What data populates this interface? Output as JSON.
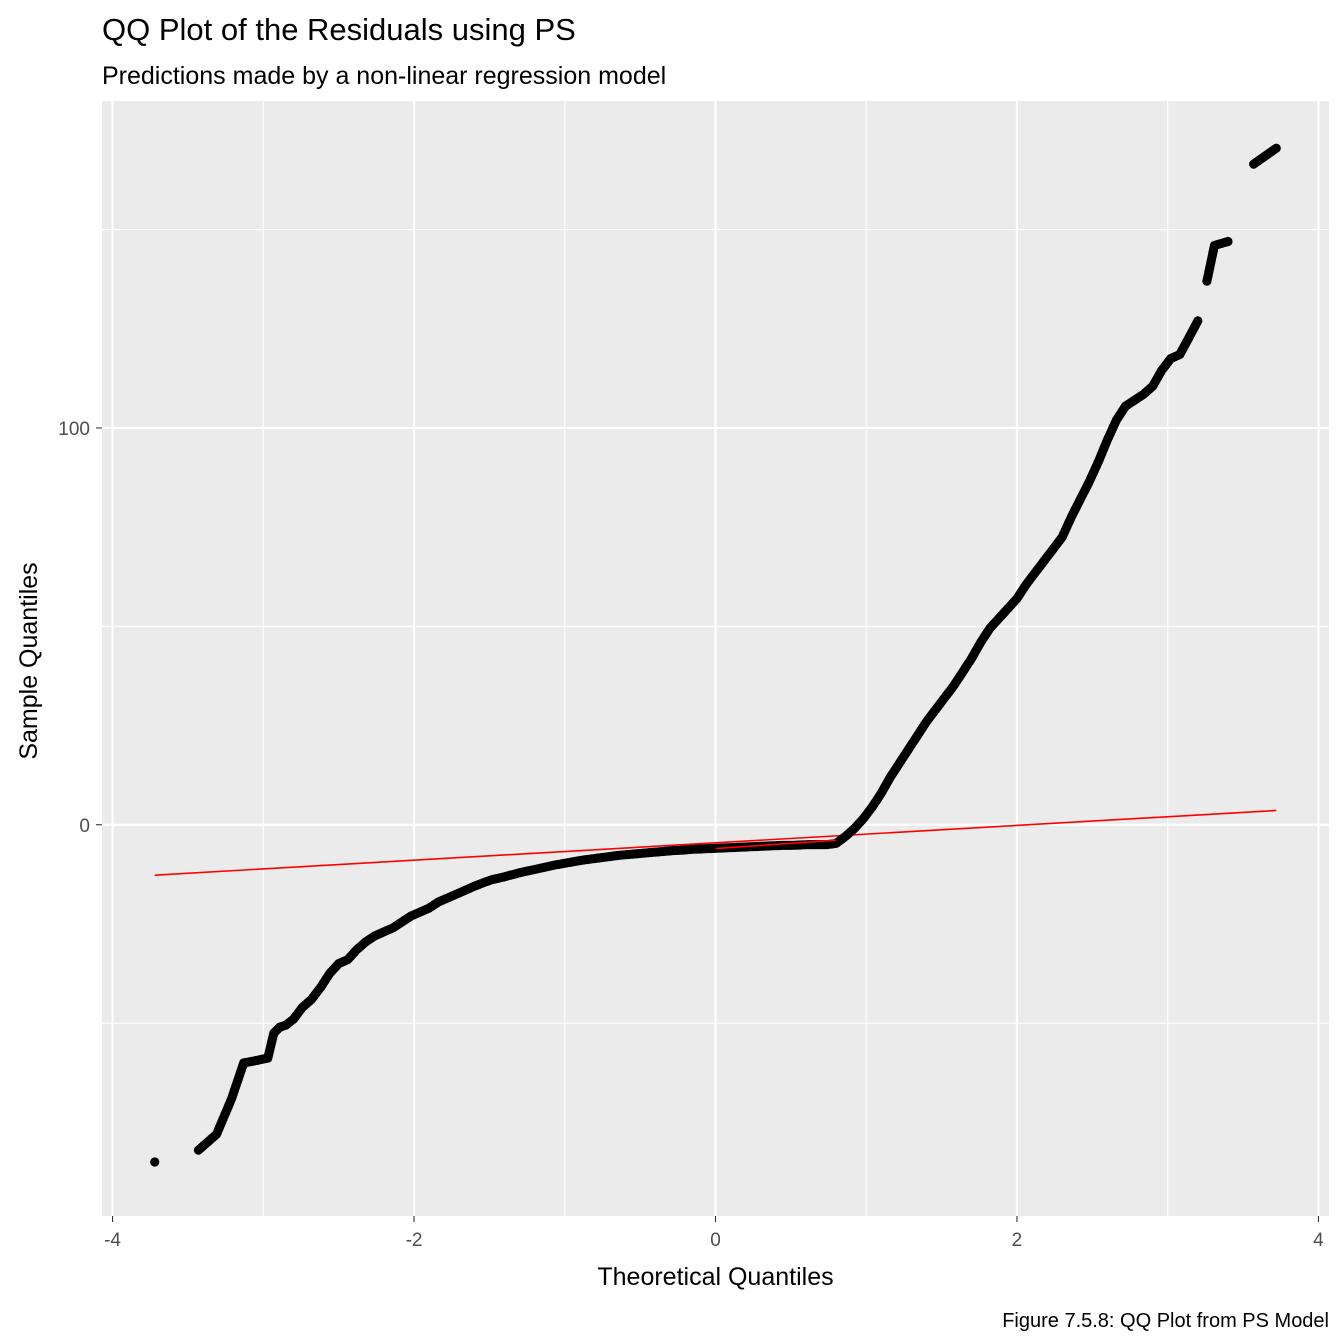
{
  "chart_data": {
    "type": "scatter",
    "title": "QQ Plot of the Residuals using PS",
    "subtitle": "Predictions made by a non-linear regression model",
    "xlabel": "Theoretical Quantiles",
    "ylabel": "Sample Quantiles",
    "caption": "Figure 7.5.8: QQ Plot from PS Model",
    "xlim": [
      -4.07,
      4.07
    ],
    "ylim": [
      -98.6,
      182.4
    ],
    "x_ticks": [
      -4,
      -2,
      0,
      2,
      4
    ],
    "x_tick_labels": [
      "-4",
      "-2",
      "0",
      "2",
      "4"
    ],
    "x_minor_ticks": [
      -3,
      -1,
      1,
      3
    ],
    "y_ticks": [
      0,
      100
    ],
    "y_tick_labels": [
      "0",
      "100"
    ],
    "y_minor_ticks": [
      -50,
      50,
      150
    ],
    "grid": true,
    "legend": "none",
    "colors": {
      "panel_background": "#ebebeb",
      "grid": "#ffffff",
      "points": "#000000",
      "reference_line": "#ff0000"
    },
    "reference_line": {
      "x": [
        -3.72,
        3.72
      ],
      "y": [
        -12.7,
        3.6
      ]
    },
    "points": [
      [
        -3.72,
        -85.0
      ],
      [
        -3.43,
        -82.0
      ],
      [
        -3.31,
        -78.0
      ],
      [
        -3.21,
        -69.0
      ],
      [
        -3.13,
        -60.0
      ],
      [
        -3.07,
        -59.6
      ],
      [
        -3.02,
        -59.2
      ],
      [
        -2.97,
        -58.8
      ],
      [
        -2.93,
        -52.5
      ],
      [
        -2.89,
        -51.0
      ],
      [
        -2.85,
        -50.5
      ],
      [
        -2.8,
        -49.0
      ],
      [
        -2.74,
        -46.0
      ],
      [
        -2.68,
        -44.0
      ],
      [
        -2.62,
        -41.0
      ],
      [
        -2.56,
        -37.5
      ],
      [
        -2.5,
        -35.0
      ],
      [
        -2.44,
        -34.0
      ],
      [
        -2.38,
        -31.5
      ],
      [
        -2.32,
        -29.5
      ],
      [
        -2.26,
        -28.0
      ],
      [
        -2.2,
        -27.0
      ],
      [
        -2.14,
        -26.0
      ],
      [
        -2.08,
        -24.5
      ],
      [
        -2.02,
        -23.0
      ],
      [
        -1.96,
        -22.0
      ],
      [
        -1.9,
        -21.0
      ],
      [
        -1.84,
        -19.5
      ],
      [
        -1.78,
        -18.5
      ],
      [
        -1.72,
        -17.5
      ],
      [
        -1.66,
        -16.5
      ],
      [
        -1.6,
        -15.5
      ],
      [
        -1.54,
        -14.6
      ],
      [
        -1.48,
        -13.8
      ],
      [
        -1.42,
        -13.3
      ],
      [
        -1.36,
        -12.7
      ],
      [
        -1.3,
        -12.1
      ],
      [
        -1.24,
        -11.6
      ],
      [
        -1.18,
        -11.1
      ],
      [
        -1.12,
        -10.6
      ],
      [
        -1.06,
        -10.1
      ],
      [
        -1.0,
        -9.7
      ],
      [
        -0.94,
        -9.3
      ],
      [
        -0.88,
        -8.9
      ],
      [
        -0.82,
        -8.6
      ],
      [
        -0.76,
        -8.3
      ],
      [
        -0.7,
        -8.0
      ],
      [
        -0.64,
        -7.7
      ],
      [
        -0.58,
        -7.5
      ],
      [
        -0.52,
        -7.3
      ],
      [
        -0.46,
        -7.1
      ],
      [
        -0.4,
        -6.9
      ],
      [
        -0.34,
        -6.7
      ],
      [
        -0.28,
        -6.5
      ],
      [
        -0.22,
        -6.4
      ],
      [
        -0.16,
        -6.2
      ],
      [
        -0.1,
        -6.1
      ],
      [
        -0.04,
        -6.0
      ],
      [
        0.02,
        -5.9
      ],
      [
        0.08,
        -5.8
      ],
      [
        0.14,
        -5.7
      ],
      [
        0.2,
        -5.6
      ],
      [
        0.26,
        -5.5
      ],
      [
        0.32,
        -5.4
      ],
      [
        0.38,
        -5.3
      ],
      [
        0.44,
        -5.2
      ],
      [
        0.5,
        -5.2
      ],
      [
        0.56,
        -5.1
      ],
      [
        0.62,
        -5.0
      ],
      [
        0.68,
        -5.0
      ],
      [
        0.74,
        -5.0
      ],
      [
        0.8,
        -4.7
      ],
      [
        0.86,
        -3.0
      ],
      [
        0.92,
        -1.0
      ],
      [
        0.98,
        1.5
      ],
      [
        1.04,
        4.5
      ],
      [
        1.1,
        8.0
      ],
      [
        1.16,
        12.0
      ],
      [
        1.22,
        15.5
      ],
      [
        1.28,
        19.0
      ],
      [
        1.34,
        22.5
      ],
      [
        1.4,
        26.0
      ],
      [
        1.46,
        29.0
      ],
      [
        1.52,
        32.0
      ],
      [
        1.58,
        35.0
      ],
      [
        1.64,
        38.5
      ],
      [
        1.7,
        42.0
      ],
      [
        1.76,
        46.0
      ],
      [
        1.82,
        49.5
      ],
      [
        1.88,
        52.0
      ],
      [
        1.94,
        54.5
      ],
      [
        2.0,
        57.0
      ],
      [
        2.06,
        60.5
      ],
      [
        2.12,
        63.5
      ],
      [
        2.18,
        66.5
      ],
      [
        2.24,
        69.5
      ],
      [
        2.3,
        72.5
      ],
      [
        2.36,
        77.5
      ],
      [
        2.42,
        82.0
      ],
      [
        2.48,
        86.5
      ],
      [
        2.54,
        91.5
      ],
      [
        2.6,
        97.0
      ],
      [
        2.66,
        102.0
      ],
      [
        2.72,
        105.5
      ],
      [
        2.78,
        107.0
      ],
      [
        2.84,
        108.5
      ],
      [
        2.9,
        110.5
      ],
      [
        2.96,
        114.5
      ],
      [
        3.02,
        117.5
      ],
      [
        3.08,
        118.5
      ],
      [
        3.13,
        122.0
      ],
      [
        3.2,
        127.0
      ],
      [
        3.26,
        137.0
      ],
      [
        3.31,
        146.0
      ],
      [
        3.4,
        147.0
      ],
      [
        3.57,
        166.5
      ],
      [
        3.72,
        170.5
      ]
    ]
  }
}
